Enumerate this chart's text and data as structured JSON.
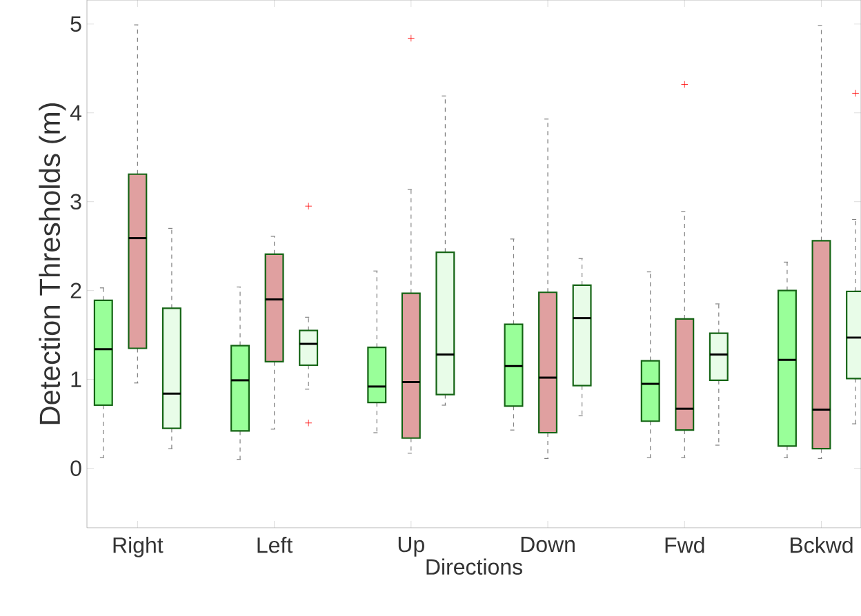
{
  "chart_data": {
    "type": "box",
    "xlabel": "Directions",
    "ylabel": "Detection Thresholds (m)",
    "categories": [
      "Right",
      "Left",
      "Up",
      "Down",
      "Fwd",
      "Bckwd"
    ],
    "ylim": [
      -0.67,
      5.27
    ],
    "yticks": [
      0,
      1,
      2,
      3,
      4,
      5
    ],
    "series": [
      {
        "color": "#99ff99",
        "boxes": [
          {
            "low": 0.12,
            "q1": 0.71,
            "median": 1.34,
            "q3": 1.89,
            "high": 2.03
          },
          {
            "low": 0.1,
            "q1": 0.42,
            "median": 0.99,
            "q3": 1.38,
            "high": 2.04
          },
          {
            "low": 0.4,
            "q1": 0.74,
            "median": 0.92,
            "q3": 1.36,
            "high": 2.22
          },
          {
            "low": 0.43,
            "q1": 0.7,
            "median": 1.15,
            "q3": 1.62,
            "high": 2.58
          },
          {
            "low": 0.12,
            "q1": 0.53,
            "median": 0.95,
            "q3": 1.21,
            "high": 2.21
          },
          {
            "low": 0.12,
            "q1": 0.25,
            "median": 1.22,
            "q3": 2.0,
            "high": 2.32
          }
        ]
      },
      {
        "color": "#e0a0a0",
        "boxes": [
          {
            "low": 0.96,
            "q1": 1.35,
            "median": 2.59,
            "q3": 3.31,
            "high": 4.99
          },
          {
            "low": 0.44,
            "q1": 1.2,
            "median": 1.9,
            "q3": 2.41,
            "high": 2.61
          },
          {
            "low": 0.17,
            "q1": 0.34,
            "median": 0.97,
            "q3": 1.97,
            "high": 3.14,
            "outliers": [
              4.84
            ]
          },
          {
            "low": 0.11,
            "q1": 0.4,
            "median": 1.02,
            "q3": 1.98,
            "high": 3.93
          },
          {
            "low": 0.12,
            "q1": 0.43,
            "median": 0.67,
            "q3": 1.68,
            "high": 2.89,
            "outliers": [
              4.32
            ]
          },
          {
            "low": 0.11,
            "q1": 0.22,
            "median": 0.66,
            "q3": 2.56,
            "high": 4.98
          }
        ]
      },
      {
        "color": "#e8fce8",
        "boxes": [
          {
            "low": 0.22,
            "q1": 0.45,
            "median": 0.84,
            "q3": 1.8,
            "high": 2.7
          },
          {
            "low": 0.89,
            "q1": 1.16,
            "median": 1.4,
            "q3": 1.55,
            "high": 1.7,
            "outliers": [
              2.95,
              0.51
            ]
          },
          {
            "low": 0.71,
            "q1": 0.83,
            "median": 1.28,
            "q3": 2.43,
            "high": 4.19
          },
          {
            "low": 0.59,
            "q1": 0.93,
            "median": 1.69,
            "q3": 2.06,
            "high": 2.36
          },
          {
            "low": 0.26,
            "q1": 0.99,
            "median": 1.28,
            "q3": 1.52,
            "high": 1.85
          },
          {
            "low": 0.5,
            "q1": 1.01,
            "median": 1.47,
            "q3": 1.99,
            "high": 2.8,
            "outliers": [
              4.22
            ]
          }
        ]
      }
    ]
  }
}
